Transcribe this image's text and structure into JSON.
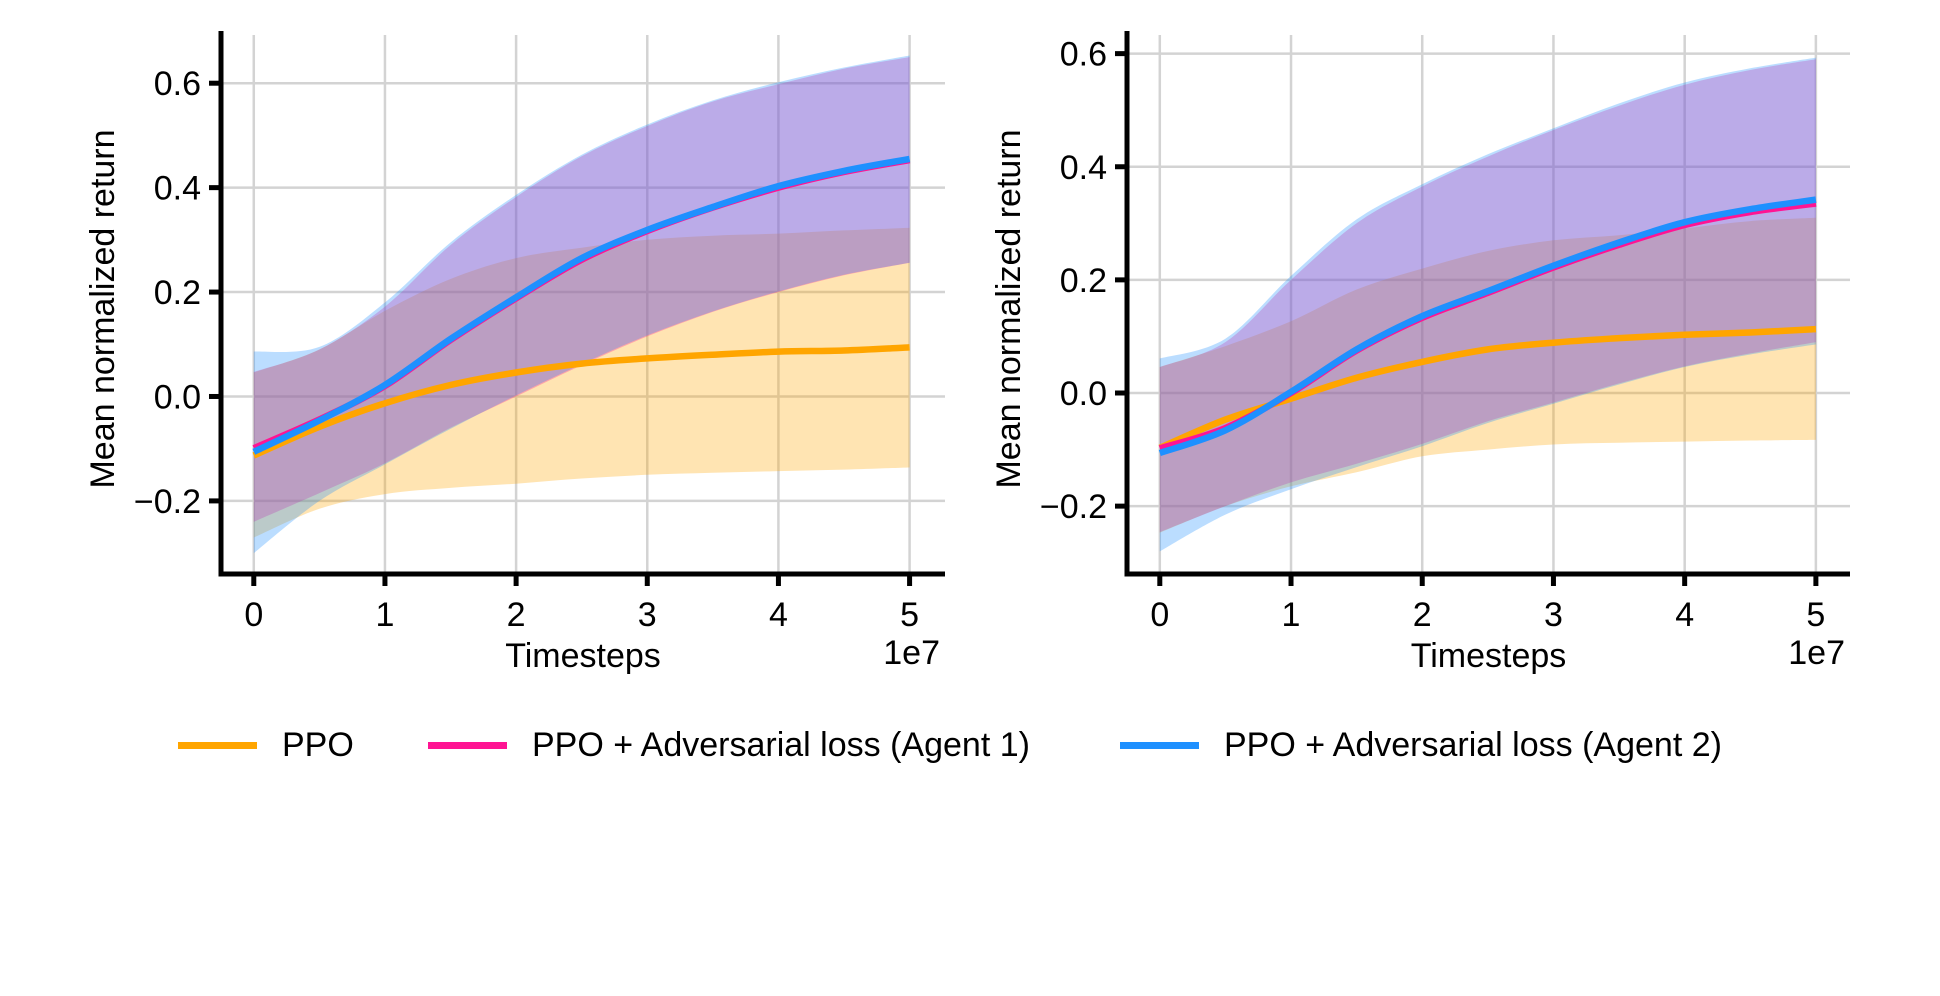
{
  "chart_data": [
    {
      "type": "line",
      "title": "",
      "xlabel": "Timesteps",
      "ylabel": "Mean normalized return",
      "x_offset_label": "1e7",
      "xlim": [
        -0.25,
        5.27
      ],
      "ylim": [
        -0.34,
        0.7
      ],
      "x_ticks": [
        0,
        1,
        2,
        3,
        4,
        5
      ],
      "x_tick_labels": [
        "0",
        "1",
        "2",
        "3",
        "4",
        "5"
      ],
      "y_ticks": [
        -0.2,
        0.0,
        0.2,
        0.4,
        0.6
      ],
      "y_tick_labels": [
        "−0.2",
        "0.0",
        "0.2",
        "0.4",
        "0.6"
      ],
      "grid": true,
      "x": [
        0,
        0.5,
        1,
        1.5,
        2,
        2.5,
        3,
        3.5,
        4,
        4.5,
        5
      ],
      "series": [
        {
          "name": "PPO",
          "color": "#FFA500",
          "values": [
            -0.113,
            -0.058,
            -0.013,
            0.022,
            0.046,
            0.063,
            0.073,
            0.08,
            0.086,
            0.088,
            0.094
          ],
          "upper": [
            0.046,
            0.09,
            0.164,
            0.225,
            0.265,
            0.285,
            0.3,
            0.308,
            0.312,
            0.318,
            0.323
          ],
          "lower": [
            -0.27,
            -0.215,
            -0.187,
            -0.175,
            -0.167,
            -0.157,
            -0.15,
            -0.146,
            -0.143,
            -0.14,
            -0.136
          ]
        },
        {
          "name": "PPO + Adversarial loss (Agent 1)",
          "color": "#FF1493",
          "values": [
            -0.099,
            -0.044,
            0.02,
            0.108,
            0.188,
            0.262,
            0.317,
            0.362,
            0.4,
            0.43,
            0.453
          ],
          "upper": [
            0.047,
            0.09,
            0.172,
            0.29,
            0.382,
            0.46,
            0.518,
            0.565,
            0.598,
            0.628,
            0.65
          ],
          "lower": [
            -0.24,
            -0.185,
            -0.128,
            -0.06,
            0.0,
            0.06,
            0.115,
            0.162,
            0.2,
            0.232,
            0.256
          ]
        },
        {
          "name": "PPO + Adversarial loss (Agent 2)",
          "color": "#1E90FF",
          "values": [
            -0.106,
            -0.046,
            0.022,
            0.11,
            0.19,
            0.265,
            0.319,
            0.363,
            0.403,
            0.432,
            0.455
          ],
          "upper": [
            0.086,
            0.095,
            0.18,
            0.295,
            0.386,
            0.463,
            0.521,
            0.567,
            0.602,
            0.63,
            0.653
          ],
          "lower": [
            -0.3,
            -0.2,
            -0.13,
            -0.062,
            0.002,
            0.062,
            0.117,
            0.163,
            0.201,
            0.233,
            0.256
          ]
        }
      ]
    },
    {
      "type": "line",
      "title": "",
      "xlabel": "Timesteps",
      "ylabel": "Mean normalized return",
      "x_offset_label": "1e7",
      "xlim": [
        -0.25,
        5.26
      ],
      "ylim": [
        -0.32,
        0.64
      ],
      "x_ticks": [
        0,
        1,
        2,
        3,
        4,
        5
      ],
      "x_tick_labels": [
        "0",
        "1",
        "2",
        "3",
        "4",
        "5"
      ],
      "y_ticks": [
        -0.2,
        0.0,
        0.2,
        0.4,
        0.6
      ],
      "y_tick_labels": [
        "−0.2",
        "0.0",
        "0.2",
        "0.4",
        "0.6"
      ],
      "grid": true,
      "x": [
        0,
        0.5,
        1,
        1.5,
        2,
        2.5,
        3,
        3.5,
        4,
        4.5,
        5
      ],
      "series": [
        {
          "name": "PPO",
          "color": "#FFA500",
          "values": [
            -0.097,
            -0.047,
            -0.01,
            0.027,
            0.055,
            0.077,
            0.089,
            0.097,
            0.103,
            0.107,
            0.113
          ],
          "upper": [
            0.046,
            0.083,
            0.127,
            0.183,
            0.22,
            0.251,
            0.27,
            0.279,
            0.291,
            0.304,
            0.31
          ],
          "lower": [
            -0.247,
            -0.2,
            -0.165,
            -0.14,
            -0.112,
            -0.1,
            -0.091,
            -0.088,
            -0.086,
            -0.084,
            -0.083
          ]
        },
        {
          "name": "PPO + Adversarial loss (Agent 1)",
          "color": "#FF1493",
          "values": [
            -0.098,
            -0.062,
            0.0,
            0.075,
            0.133,
            0.177,
            0.222,
            0.262,
            0.297,
            0.32,
            0.335
          ],
          "upper": [
            0.046,
            0.09,
            0.2,
            0.3,
            0.365,
            0.418,
            0.465,
            0.508,
            0.545,
            0.571,
            0.59
          ],
          "lower": [
            -0.246,
            -0.2,
            -0.158,
            -0.125,
            -0.09,
            -0.05,
            -0.017,
            0.017,
            0.047,
            0.07,
            0.09
          ]
        },
        {
          "name": "PPO + Adversarial loss (Agent 2)",
          "color": "#1E90FF",
          "values": [
            -0.106,
            -0.066,
            0.002,
            0.077,
            0.136,
            0.18,
            0.225,
            0.266,
            0.302,
            0.325,
            0.342
          ],
          "upper": [
            0.061,
            0.096,
            0.207,
            0.307,
            0.369,
            0.422,
            0.468,
            0.512,
            0.549,
            0.574,
            0.593
          ],
          "lower": [
            -0.28,
            -0.215,
            -0.17,
            -0.131,
            -0.094,
            -0.053,
            -0.019,
            0.015,
            0.046,
            0.068,
            0.086
          ]
        }
      ]
    }
  ],
  "legend": {
    "placement": "bottom-center",
    "items": [
      {
        "label": "PPO",
        "color": "#FFA500"
      },
      {
        "label": "PPO + Adversarial loss (Agent 1)",
        "color": "#FF1493"
      },
      {
        "label": "PPO + Adversarial loss (Agent 2)",
        "color": "#1E90FF"
      }
    ]
  }
}
